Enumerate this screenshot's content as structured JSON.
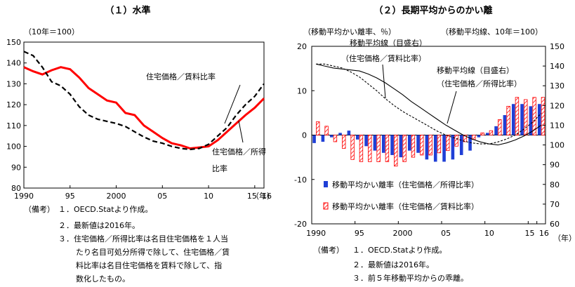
{
  "chart_data": [
    {
      "type": "line",
      "title": "（１）水準",
      "unit_label": "（10年＝100）",
      "xlabel": "（年）",
      "ylim": [
        80,
        150
      ],
      "yticks": [
        80,
        90,
        100,
        110,
        120,
        130,
        140,
        150
      ],
      "xlim": [
        1990,
        2016
      ],
      "xticks": [
        {
          "value": 1990,
          "label": "1990"
        },
        {
          "value": 1995,
          "label": "95"
        },
        {
          "value": 2000,
          "label": "2000"
        },
        {
          "value": 2005,
          "label": "05"
        },
        {
          "value": 2010,
          "label": "10"
        },
        {
          "value": 2015,
          "label": "15"
        },
        {
          "value": 2016,
          "label": "16"
        }
      ],
      "series": [
        {
          "name": "住宅価格／所得比率",
          "color": "#ff0000",
          "style": "solid",
          "x": [
            1990,
            1991,
            1992,
            1993,
            1994,
            1995,
            1996,
            1997,
            1998,
            1999,
            2000,
            2001,
            2002,
            2003,
            2004,
            2005,
            2006,
            2007,
            2008,
            2009,
            2010,
            2011,
            2012,
            2013,
            2014,
            2015,
            2016
          ],
          "values": [
            138,
            136,
            134.5,
            136.5,
            138,
            137,
            133,
            128,
            125,
            122,
            121,
            116,
            115,
            110,
            107,
            104,
            101.5,
            100.5,
            99,
            99.5,
            100,
            103,
            107,
            111,
            115,
            118.5,
            123
          ]
        },
        {
          "name": "住宅価格／賃料比率",
          "color": "#000000",
          "style": "dashed",
          "x": [
            1990,
            1991,
            1992,
            1993,
            1994,
            1995,
            1996,
            1997,
            1998,
            1999,
            2000,
            2001,
            2002,
            2003,
            2004,
            2005,
            2006,
            2007,
            2008,
            2009,
            2010,
            2011,
            2012,
            2013,
            2014,
            2015,
            2016
          ],
          "values": [
            145.5,
            143.5,
            138,
            131,
            129,
            125,
            119,
            115,
            113,
            112,
            111,
            109.5,
            107,
            104.5,
            102.5,
            101.5,
            100,
            99,
            98.5,
            99,
            101,
            105,
            109,
            115,
            120,
            124,
            130
          ]
        }
      ],
      "annotations": [
        {
          "text": "住宅価格／賃料比率",
          "lines": [
            "住宅価格／賃料比率"
          ]
        },
        {
          "text": "住宅価格／所得比率",
          "lines": [
            "住宅価格／所得",
            "比率"
          ]
        }
      ]
    },
    {
      "type": "bar+line",
      "title": "（２）長期平均からのかい離",
      "left_unit_label": "（移動平均かい離率、％）",
      "right_unit_label": "（移動平均線、10年＝100）",
      "xlabel": "（年）",
      "ylim_left": [
        -20,
        20
      ],
      "yticks_left": [
        -20,
        -10,
        0,
        10,
        20
      ],
      "ylim_right": [
        60,
        150
      ],
      "yticks_right": [
        60,
        70,
        80,
        90,
        100,
        110,
        120,
        130,
        140,
        150
      ],
      "xlim": [
        1990,
        2016
      ],
      "xticks": [
        {
          "value": 1990,
          "label": "1990"
        },
        {
          "value": 1995,
          "label": "95"
        },
        {
          "value": 2000,
          "label": "2000"
        },
        {
          "value": 2005,
          "label": "05"
        },
        {
          "value": 2010,
          "label": "10"
        },
        {
          "value": 2015,
          "label": "15"
        },
        {
          "value": 2016,
          "label": "16"
        }
      ],
      "x": [
        1990,
        1991,
        1992,
        1993,
        1994,
        1995,
        1996,
        1997,
        1998,
        1999,
        2000,
        2001,
        2002,
        2003,
        2004,
        2005,
        2006,
        2007,
        2008,
        2009,
        2010,
        2011,
        2012,
        2013,
        2014,
        2015,
        2016
      ],
      "bar_series": [
        {
          "name": "移動平均かい離率（住宅価格／所得比率）",
          "color": "#1f3fd6",
          "axis": "left",
          "values": [
            -1.8,
            -1.5,
            -0.5,
            0.5,
            1,
            -1,
            -2.5,
            -3.5,
            -4,
            -4.5,
            -5,
            -3.5,
            -4,
            -5.5,
            -6,
            -6,
            -5.5,
            -4.5,
            -3.5,
            -0.5,
            0.5,
            2,
            4.5,
            7,
            7,
            6.5,
            7
          ]
        },
        {
          "name": "移動平均かい離率（住宅価格／賃料比率）",
          "color": "#ff0000",
          "axis": "left",
          "values": [
            3,
            2,
            -1.5,
            -3,
            -5.5,
            -6,
            -6,
            -6,
            -6,
            -7,
            -6,
            -5,
            -4.5,
            -4.5,
            -4,
            -3.5,
            -2.5,
            -1.5,
            -1,
            0.5,
            1,
            3.5,
            6.5,
            8.5,
            8,
            8.5,
            8.5
          ]
        }
      ],
      "line_series": [
        {
          "name": "移動平均線（住宅価格／所得比率）",
          "color": "#000000",
          "style": "solid",
          "axis": "right",
          "values": [
            141,
            140,
            139,
            138.5,
            138,
            137.5,
            136,
            134,
            131.5,
            128.5,
            125.5,
            122,
            119,
            116,
            113,
            110,
            107.5,
            105,
            103,
            101.5,
            100.5,
            100,
            101,
            102.5,
            104.5,
            107,
            110
          ]
        },
        {
          "name": "移動平均線（住宅価格／賃料比率）",
          "color": "#000000",
          "style": "dashed",
          "axis": "right",
          "values": [
            141,
            141,
            140,
            139,
            137,
            134.5,
            131,
            127.5,
            123.5,
            120,
            117,
            114.5,
            112,
            109.5,
            107,
            105,
            103.5,
            102,
            101,
            100.5,
            100.5,
            101.5,
            103,
            105,
            108,
            111.5,
            116
          ]
        }
      ],
      "annotations": [
        {
          "text": "移動平均線（目盛右）（住宅価格／賃料比率）",
          "lines": [
            "移動平均線（目盛右）",
            "（住宅価格／賃料比率）"
          ]
        },
        {
          "text": "移動平均線（目盛右）（住宅価格／所得比率）",
          "lines": [
            "移動平均線（目盛右）",
            "（住宅価格／所得比率）"
          ]
        }
      ],
      "legend": [
        "移動平均かい離率（住宅価格／所得比率）",
        "移動平均かい離率（住宅価格／賃料比率）"
      ]
    }
  ],
  "notes_left": {
    "label": "（備考）",
    "items": [
      "１．OECD.Statより作成。",
      "２．最新値は2016年。",
      "３．住宅価格／所得比率は名目住宅価格を１人当",
      "たり名目可処分所得で除して、住宅価格／賃",
      "料比率は名目住宅価格を賃料で除して、指",
      "数化したもの。"
    ]
  },
  "notes_right": {
    "label": "（備考）",
    "items": [
      "１．OECD.Statより作成。",
      "２．最新値は2016年。",
      "３．前５年移動平均からの乖離。"
    ]
  }
}
